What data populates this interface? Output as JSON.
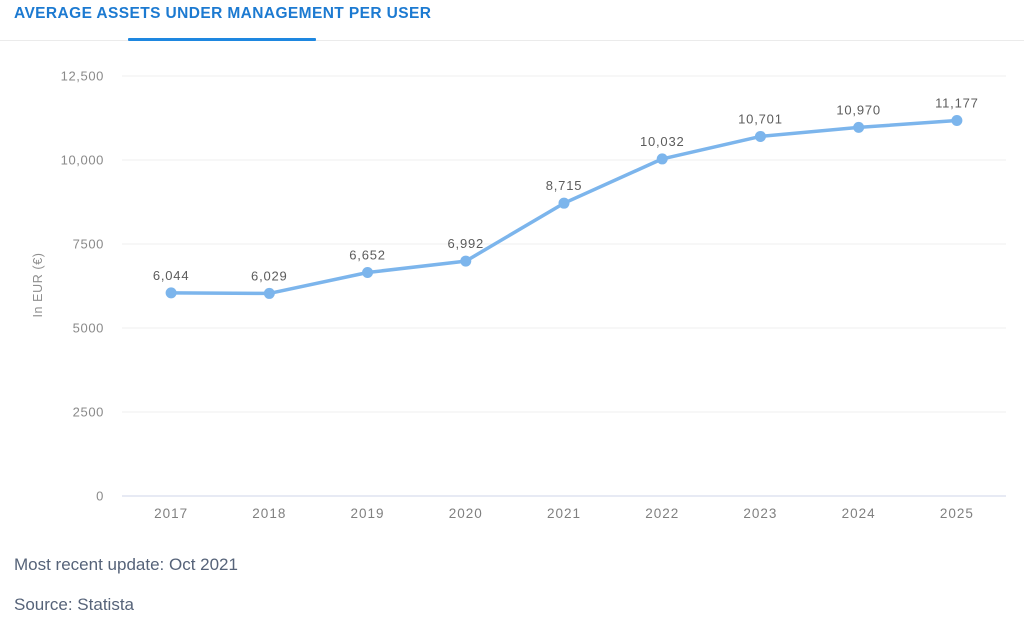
{
  "header": {
    "title": "AVERAGE ASSETS UNDER MANAGEMENT PER USER"
  },
  "chart_data": {
    "type": "line",
    "categories": [
      "2017",
      "2018",
      "2019",
      "2020",
      "2021",
      "2022",
      "2023",
      "2024",
      "2025"
    ],
    "values": [
      6044,
      6029,
      6652,
      6992,
      8715,
      10032,
      10701,
      10970,
      11177
    ],
    "value_labels": [
      "6,044",
      "6,029",
      "6,652",
      "6,992",
      "8,715",
      "10,032",
      "10,701",
      "10,970",
      "11,177"
    ],
    "title": "AVERAGE ASSETS UNDER MANAGEMENT PER USER",
    "xlabel": "",
    "ylabel": "In EUR (€)",
    "ylim": [
      0,
      12500
    ],
    "yticks": [
      0,
      2500,
      5000,
      7500,
      10000,
      12500
    ],
    "ytick_labels": [
      "0",
      "2500",
      "5000",
      "7500",
      "10,000",
      "12,500"
    ],
    "grid": true,
    "legend": "none",
    "series_name": "Average assets under management per user"
  },
  "footer": {
    "update": "Most recent update: Oct 2021",
    "source": "Source: Statista"
  },
  "colors": {
    "title_text": "#1c7ad1",
    "tab_underline": "#1e87e0",
    "line": "#7cb5ec",
    "marker": "#7cb5ec",
    "grid": "#efefef",
    "zero_axis": "#dfe4f0",
    "tick_text": "#8a8a8a",
    "data_label_text": "#5c5c5c",
    "footer_text": "#566379"
  }
}
